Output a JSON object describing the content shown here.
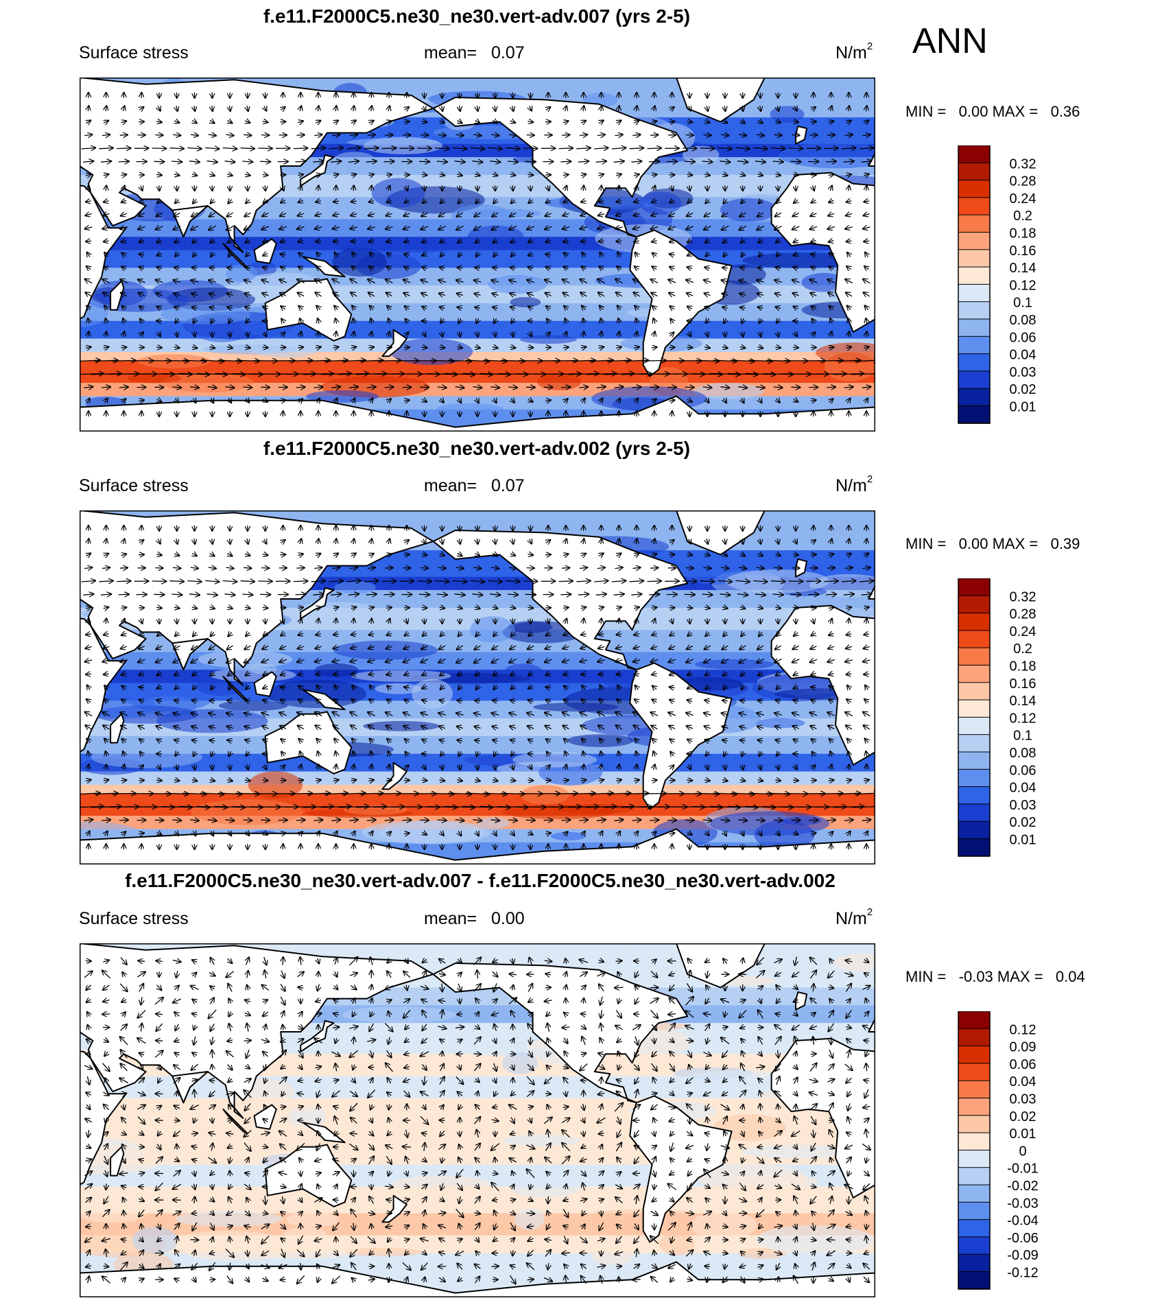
{
  "season": "ANN",
  "panels": [
    {
      "title": "f.e11.F2000C5.ne30_ne30.vert-adv.007 (yrs 2-5)",
      "left_label": "Surface stress",
      "mean_label": "mean=",
      "mean_value": "0.07",
      "units_base": "N/m",
      "units_exp": "2",
      "min_label": "MIN =",
      "min_value": "0.00",
      "max_label": "MAX =",
      "max_value": "0.36"
    },
    {
      "title": "f.e11.F2000C5.ne30_ne30.vert-adv.002 (yrs 2-5)",
      "left_label": "Surface stress",
      "mean_label": "mean=",
      "mean_value": "0.07",
      "units_base": "N/m",
      "units_exp": "2",
      "min_label": "MIN =",
      "min_value": "0.00",
      "max_label": "MAX =",
      "max_value": "0.39"
    },
    {
      "title": "f.e11.F2000C5.ne30_ne30.vert-adv.007 - f.e11.F2000C5.ne30_ne30.vert-adv.002",
      "left_label": "Surface stress",
      "mean_label": "mean=",
      "mean_value": "0.00",
      "units_base": "N/m",
      "units_exp": "2",
      "min_label": "MIN =",
      "min_value": "-0.03",
      "max_label": "MAX =",
      "max_value": "0.04"
    }
  ],
  "chart_data": [
    {
      "type": "heatmap",
      "title": "f.e11.F2000C5.ne30_ne30.vert-adv.007 (yrs 2-5)",
      "variable": "Surface stress",
      "units": "N/m2",
      "mean": 0.07,
      "min": 0.0,
      "max": 0.36,
      "contour_levels": [
        "0.32",
        "0.28",
        "0.24",
        "0.2",
        "0.18",
        "0.16",
        "0.14",
        "0.12",
        "0.1",
        "0.08",
        "0.06",
        "0.04",
        "0.03",
        "0.02",
        "0.01"
      ],
      "colors": [
        "#8b0000",
        "#b01a00",
        "#d83000",
        "#ee4a1a",
        "#f77a48",
        "#fba37c",
        "#fcc8a8",
        "#fde8d6",
        "#dbe9f7",
        "#b6d0f4",
        "#8fb5f1",
        "#5e8fee",
        "#2f63e8",
        "#1a3fd0",
        "#08219e",
        "#001073"
      ]
    },
    {
      "type": "heatmap",
      "title": "f.e11.F2000C5.ne30_ne30.vert-adv.002 (yrs 2-5)",
      "variable": "Surface stress",
      "units": "N/m2",
      "mean": 0.07,
      "min": 0.0,
      "max": 0.39,
      "contour_levels": [
        "0.32",
        "0.28",
        "0.24",
        "0.2",
        "0.18",
        "0.16",
        "0.14",
        "0.12",
        "0.1",
        "0.08",
        "0.06",
        "0.04",
        "0.03",
        "0.02",
        "0.01"
      ],
      "colors": [
        "#8b0000",
        "#b01a00",
        "#d83000",
        "#ee4a1a",
        "#f77a48",
        "#fba37c",
        "#fcc8a8",
        "#fde8d6",
        "#dbe9f7",
        "#b6d0f4",
        "#8fb5f1",
        "#5e8fee",
        "#2f63e8",
        "#1a3fd0",
        "#08219e",
        "#001073"
      ]
    },
    {
      "type": "heatmap",
      "title": "f.e11.F2000C5.ne30_ne30.vert-adv.007 - f.e11.F2000C5.ne30_ne30.vert-adv.002",
      "variable": "Surface stress",
      "units": "N/m2",
      "mean": 0.0,
      "min": -0.03,
      "max": 0.04,
      "contour_levels": [
        "0.12",
        "0.09",
        "0.06",
        "0.04",
        "0.03",
        "0.02",
        "0.01",
        "0",
        "-0.01",
        "-0.02",
        "-0.03",
        "-0.04",
        "-0.06",
        "-0.09",
        "-0.12"
      ],
      "colors": [
        "#8b0000",
        "#b01a00",
        "#d83000",
        "#ee4a1a",
        "#f77a48",
        "#fba37c",
        "#fcc8a8",
        "#fde8d6",
        "#dbe9f7",
        "#b6d0f4",
        "#8fb5f1",
        "#5e8fee",
        "#2f63e8",
        "#1a3fd0",
        "#08219e",
        "#001073"
      ]
    }
  ]
}
